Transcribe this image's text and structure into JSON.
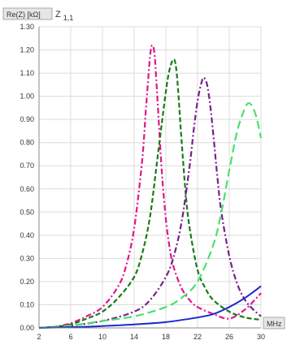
{
  "chart_data": {
    "type": "line",
    "y_axis_label": "Re(Z) [kΩ]",
    "panel_label_base": "Z",
    "panel_label_sub": "1,1",
    "x_axis_label": "MHz",
    "xlim": [
      2,
      30
    ],
    "ylim": [
      0,
      1.3
    ],
    "x_ticks": [
      "2",
      "6",
      "10",
      "14",
      "18",
      "22",
      "26",
      "30"
    ],
    "y_ticks": [
      "0.00",
      "0.10",
      "0.20",
      "0.30",
      "0.40",
      "0.50",
      "0.60",
      "0.70",
      "0.80",
      "0.90",
      "1.00",
      "1.10",
      "1.20",
      "1.30"
    ],
    "grid": true,
    "series": [
      {
        "color": "#e0168c",
        "style": "dash-dot",
        "x": [
          2,
          4,
          6,
          8,
          10,
          12,
          13,
          14,
          15,
          15.5,
          16,
          16.3,
          16.6,
          17,
          17.5,
          18,
          18.5,
          19,
          20,
          21,
          22,
          24,
          26,
          28,
          30
        ],
        "y": [
          0.0,
          0.005,
          0.02,
          0.05,
          0.09,
          0.18,
          0.27,
          0.43,
          0.72,
          0.95,
          1.17,
          1.22,
          1.17,
          0.95,
          0.67,
          0.47,
          0.34,
          0.26,
          0.17,
          0.12,
          0.09,
          0.06,
          0.04,
          0.08,
          0.15
        ]
      },
      {
        "color": "#1a7a1a",
        "style": "dashed",
        "x": [
          2,
          4,
          6,
          8,
          10,
          12,
          14,
          15,
          16,
          17,
          18,
          18.5,
          19,
          19.3,
          19.6,
          20,
          20.5,
          21,
          22,
          23,
          24,
          26,
          28,
          30
        ],
        "y": [
          0.0,
          0.005,
          0.015,
          0.04,
          0.07,
          0.13,
          0.22,
          0.32,
          0.48,
          0.75,
          1.02,
          1.12,
          1.16,
          1.12,
          1.0,
          0.8,
          0.58,
          0.43,
          0.25,
          0.17,
          0.12,
          0.07,
          0.045,
          0.035
        ]
      },
      {
        "color": "#7a1f8c",
        "style": "dash-dot",
        "x": [
          2,
          6,
          10,
          14,
          16,
          18,
          19,
          20,
          21,
          21.5,
          22,
          22.5,
          22.8,
          23.2,
          23.6,
          24,
          24.5,
          25,
          26,
          27,
          28,
          29,
          30
        ],
        "y": [
          0.0,
          0.01,
          0.03,
          0.07,
          0.12,
          0.22,
          0.31,
          0.46,
          0.7,
          0.85,
          0.98,
          1.06,
          1.08,
          1.05,
          0.96,
          0.83,
          0.65,
          0.5,
          0.31,
          0.19,
          0.12,
          0.08,
          0.05
        ]
      },
      {
        "color": "#4be06e",
        "style": "long-dash",
        "x": [
          2,
          6,
          10,
          14,
          18,
          20,
          22,
          24,
          25,
          26,
          27,
          28,
          28.5,
          29,
          29.5,
          30
        ],
        "y": [
          0.0,
          0.01,
          0.03,
          0.05,
          0.09,
          0.13,
          0.2,
          0.36,
          0.5,
          0.68,
          0.85,
          0.95,
          0.97,
          0.95,
          0.9,
          0.82
        ]
      },
      {
        "color": "#1a2acc",
        "style": "solid",
        "x": [
          2,
          6,
          10,
          14,
          18,
          22,
          24,
          26,
          28,
          30
        ],
        "y": [
          0.0,
          0.003,
          0.008,
          0.015,
          0.025,
          0.045,
          0.06,
          0.09,
          0.13,
          0.18
        ]
      }
    ]
  }
}
